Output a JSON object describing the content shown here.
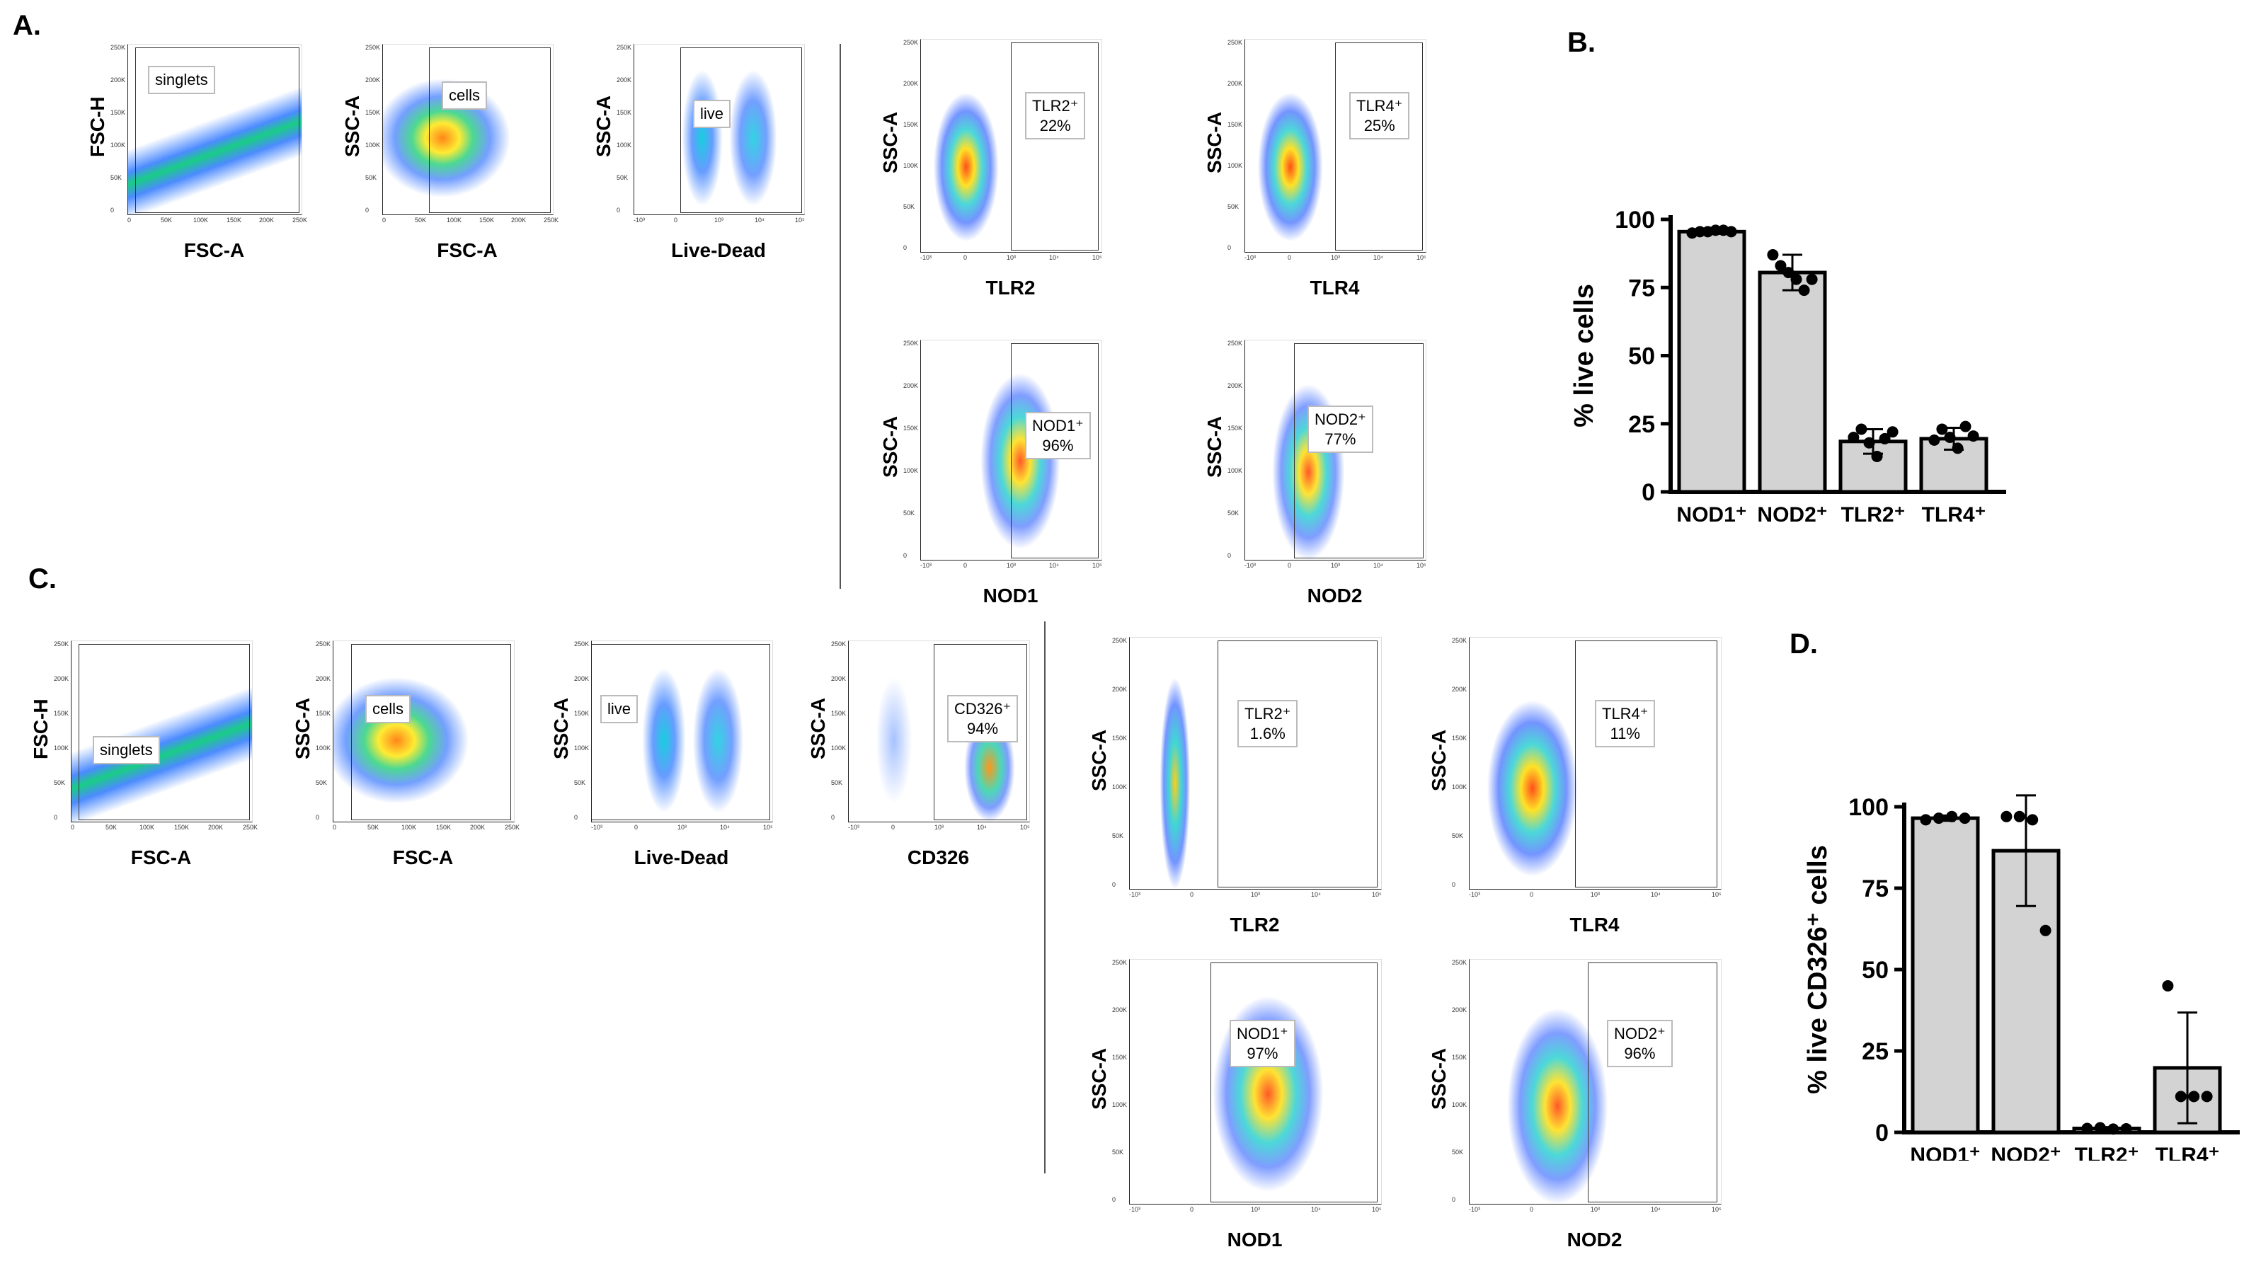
{
  "panels": {
    "a": "A.",
    "b": "B.",
    "c": "C.",
    "d": "D."
  },
  "panel_a": {
    "plots": [
      {
        "id": "a1",
        "ylabel": "FSC-H",
        "xlabel": "FSC-A",
        "gate": "singlets",
        "pct": ""
      },
      {
        "id": "a2",
        "ylabel": "SSC-A",
        "xlabel": "FSC-A",
        "gate": "cells",
        "pct": ""
      },
      {
        "id": "a3",
        "ylabel": "SSC-A",
        "xlabel": "Live-Dead",
        "gate": "live",
        "pct": ""
      },
      {
        "id": "a4",
        "ylabel": "SSC-A",
        "xlabel": "TLR2",
        "gate": "TLR2⁺",
        "pct": "22%"
      },
      {
        "id": "a5",
        "ylabel": "SSC-A",
        "xlabel": "TLR4",
        "gate": "TLR4⁺",
        "pct": "25%"
      },
      {
        "id": "a6",
        "ylabel": "SSC-A",
        "xlabel": "NOD1",
        "gate": "NOD1⁺",
        "pct": "96%"
      },
      {
        "id": "a7",
        "ylabel": "SSC-A",
        "xlabel": "NOD2",
        "gate": "NOD2⁺",
        "pct": "77%"
      }
    ]
  },
  "panel_c": {
    "plots": [
      {
        "id": "c1",
        "ylabel": "FSC-H",
        "xlabel": "FSC-A",
        "gate": "singlets",
        "pct": ""
      },
      {
        "id": "c2",
        "ylabel": "SSC-A",
        "xlabel": "FSC-A",
        "gate": "cells",
        "pct": ""
      },
      {
        "id": "c3",
        "ylabel": "SSC-A",
        "xlabel": "Live-Dead",
        "gate": "live",
        "pct": ""
      },
      {
        "id": "c4",
        "ylabel": "SSC-A",
        "xlabel": "CD326",
        "gate": "CD326⁺",
        "pct": "94%"
      },
      {
        "id": "c5",
        "ylabel": "SSC-A",
        "xlabel": "TLR2",
        "gate": "TLR2⁺",
        "pct": "1.6%"
      },
      {
        "id": "c6",
        "ylabel": "SSC-A",
        "xlabel": "TLR4",
        "gate": "TLR4⁺",
        "pct": "11%"
      },
      {
        "id": "c7",
        "ylabel": "SSC-A",
        "xlabel": "NOD1",
        "gate": "NOD1⁺",
        "pct": "97%"
      },
      {
        "id": "c8",
        "ylabel": "SSC-A",
        "xlabel": "NOD2",
        "gate": "NOD2⁺",
        "pct": "96%"
      }
    ]
  },
  "axis_ticks": {
    "linear_y": [
      "250K",
      "200K",
      "150K",
      "100K",
      "50K",
      "0"
    ],
    "linear_x": [
      "0",
      "50K",
      "100K",
      "150K",
      "200K",
      "250K"
    ],
    "log_x": [
      "-10³",
      "0",
      "10³",
      "10⁴",
      "10⁵"
    ]
  },
  "chart_data": [
    {
      "type": "bar",
      "title": "",
      "ylabel": "% live cells",
      "xlabel": "",
      "categories": [
        "NOD1⁺",
        "NOD2⁺",
        "TLR2⁺",
        "TLR4⁺"
      ],
      "values": [
        95.5,
        80.5,
        18.5,
        19.5
      ],
      "errors": [
        0.8,
        6.5,
        4.5,
        4.0
      ],
      "points": [
        [
          95,
          95.5,
          95.5,
          96,
          96,
          95.5
        ],
        [
          87,
          83,
          80.5,
          78,
          74,
          78
        ],
        [
          20,
          23,
          18,
          13,
          19.5,
          22
        ],
        [
          19,
          23,
          20,
          16,
          24,
          20.5
        ]
      ],
      "ylim": [
        0,
        100
      ],
      "yticks": [
        0,
        25,
        50,
        75,
        100
      ],
      "bar_color": "#d3d3d3"
    },
    {
      "type": "bar",
      "title": "",
      "ylabel": "% live CD326⁺ cells",
      "xlabel": "",
      "categories": [
        "NOD1⁺",
        "NOD2⁺",
        "TLR2⁺",
        "TLR4⁺"
      ],
      "values": [
        96.5,
        86.5,
        1.2,
        19.8
      ],
      "errors": [
        0.8,
        17,
        0.4,
        17
      ],
      "points": [
        [
          96,
          96.5,
          97,
          96.5
        ],
        [
          97,
          97,
          96,
          62
        ],
        [
          1.2,
          1.4,
          1.0,
          1.1
        ],
        [
          45,
          11,
          11,
          11
        ]
      ],
      "ylim": [
        0,
        100
      ],
      "yticks": [
        0,
        25,
        50,
        75,
        100
      ],
      "bar_color": "#d3d3d3"
    }
  ]
}
